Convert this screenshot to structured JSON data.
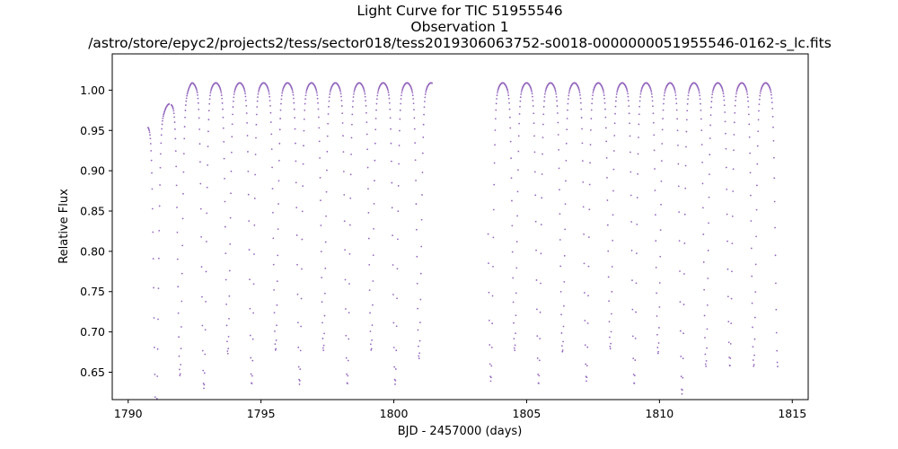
{
  "chart_data": {
    "type": "scatter",
    "title_lines": [
      "Light Curve for TIC 51955546",
      "Observation 1",
      "/astro/store/epyc2/projects2/tess/sector018/tess2019306063752-s0018-0000000051955546-0162-s_lc.fits"
    ],
    "xlabel": "BJD - 2457000 (days)",
    "ylabel": "Relative Flux",
    "xlim": [
      1789.4,
      1815.6
    ],
    "ylim": [
      0.616,
      1.045
    ],
    "xticks": [
      1790,
      1795,
      1800,
      1805,
      1810,
      1815
    ],
    "yticks": [
      0.65,
      0.7,
      0.75,
      0.8,
      0.85,
      0.9,
      0.95,
      1.0
    ],
    "grid": false,
    "marker_color": "#9467bd",
    "model": {
      "description": "eclipsing light curve read from figure",
      "period_days": 0.9,
      "first_eclipse": 1791.05,
      "eclipse_min_flux": [
        0.64,
        0.672,
        0.643,
        0.686,
        0.648,
        0.69,
        0.648,
        0.69,
        0.648,
        0.69,
        0.648,
        0.68,
        0.65,
        0.69,
        0.652,
        0.69,
        0.648,
        0.688,
        0.652,
        0.692,
        0.648,
        0.686,
        0.636,
        0.67
      ],
      "data_gaps": [
        [
          1791.55,
          1791.62
        ],
        [
          1801.45,
          1803.55
        ]
      ],
      "x_start": 1790.75,
      "x_end": 1814.45
    }
  }
}
